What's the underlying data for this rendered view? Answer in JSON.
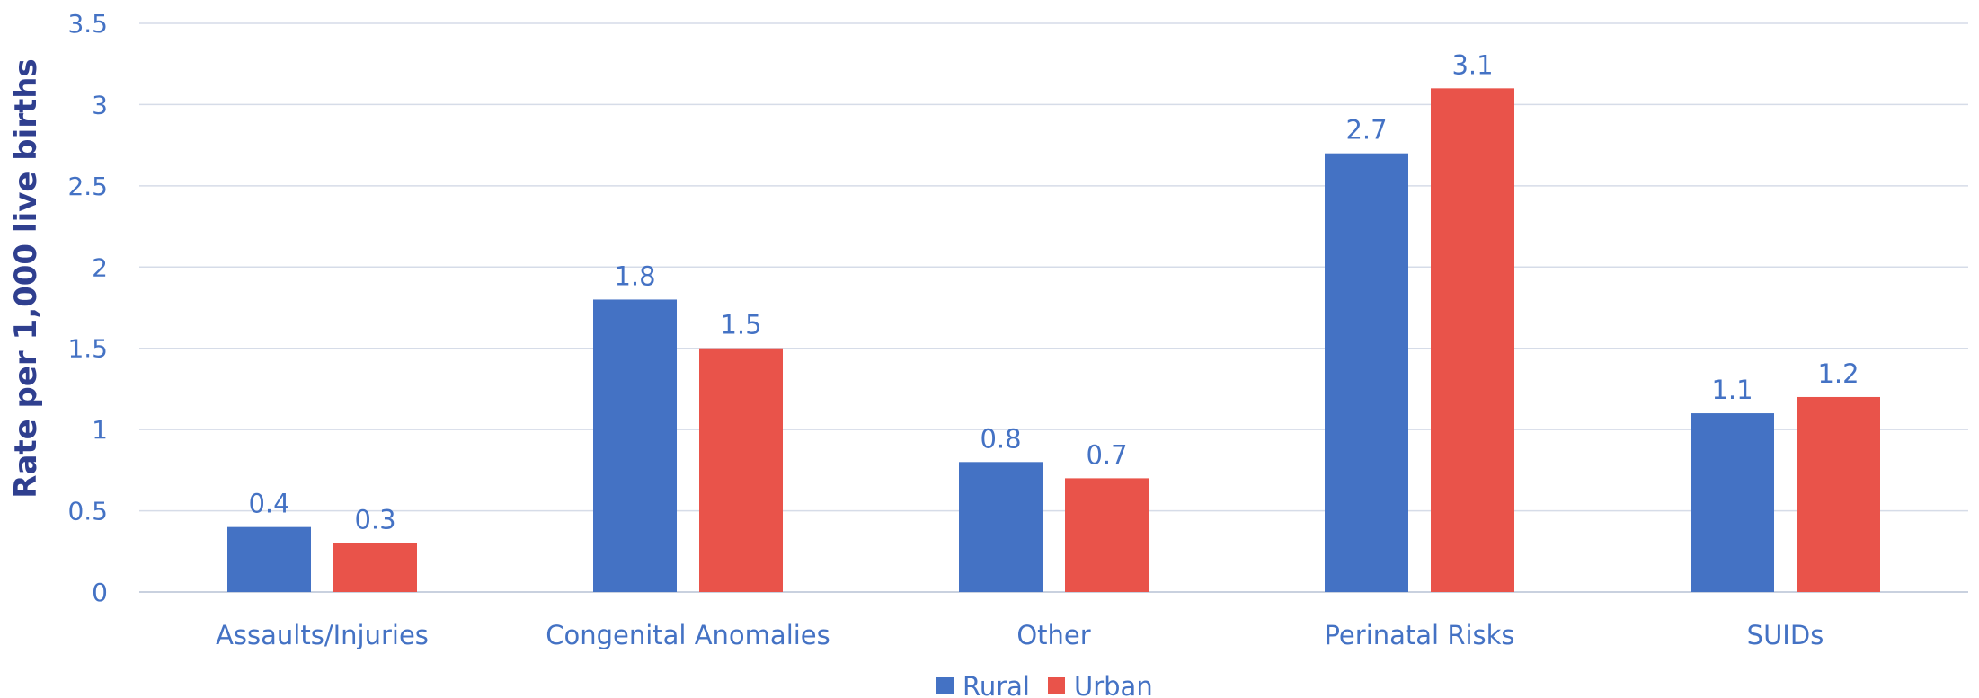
{
  "chart_data": {
    "type": "bar",
    "categories": [
      "Assaults/Injuries",
      "Congenital Anomalies",
      "Other",
      "Perinatal Risks",
      "SUIDs"
    ],
    "series": [
      {
        "name": "Rural",
        "values": [
          0.4,
          1.8,
          0.8,
          2.7,
          1.1
        ],
        "color": "#4472C4"
      },
      {
        "name": "Urban",
        "values": [
          0.3,
          1.5,
          0.7,
          3.1,
          1.2
        ],
        "color": "#E9534A"
      }
    ],
    "data_labels": [
      [
        "0.4",
        "1.8",
        "0.8",
        "2.7",
        "1.1"
      ],
      [
        "0.3",
        "1.5",
        "0.7",
        "3.1",
        "1.2"
      ]
    ],
    "ylabel": "Rate per 1,000 live births",
    "ylim": [
      0,
      3.5
    ],
    "yticks": [
      0,
      0.5,
      1,
      1.5,
      2,
      2.5,
      3,
      3.5
    ],
    "ytick_labels": [
      "0",
      "0.5",
      "1",
      "1.5",
      "2",
      "2.5",
      "3",
      "3.5"
    ],
    "grid": true,
    "legend_position": "bottom"
  }
}
